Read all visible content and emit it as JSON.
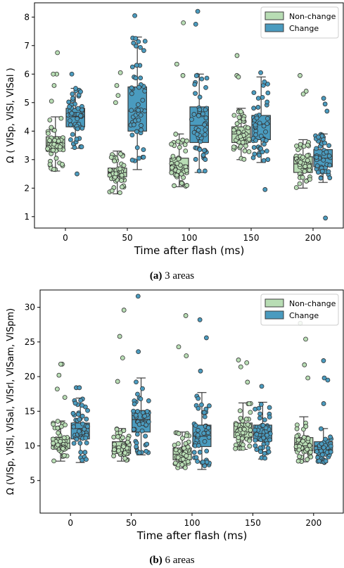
{
  "colors": {
    "nonchange": "#b8ddb4",
    "change": "#4a9bbf",
    "edge": "#3d3d3d"
  },
  "chart_data": [
    {
      "type": "box",
      "xlabel": "Time after flash (ms)",
      "ylabel": "Ω ( VISp, VISl, VISal )",
      "categories": [
        "0",
        "50",
        "100",
        "150",
        "200"
      ],
      "yticks": [
        1,
        2,
        3,
        4,
        5,
        6,
        7,
        8
      ],
      "ylim": [
        0.6,
        8.5
      ],
      "grid": false,
      "legend": {
        "position": "top-right",
        "entries": [
          "Non-change",
          "Change"
        ]
      },
      "series": [
        {
          "name": "Non-change",
          "boxes": [
            {
              "q1": 3.3,
              "median": 3.5,
              "q3": 3.8,
              "whisker_low": 2.6,
              "whisker_high": 4.5
            },
            {
              "q1": 2.4,
              "median": 2.55,
              "q3": 2.7,
              "whisker_low": 1.8,
              "whisker_high": 3.3
            },
            {
              "q1": 2.5,
              "median": 2.8,
              "q3": 3.05,
              "whisker_low": 2.05,
              "whisker_high": 3.9
            },
            {
              "q1": 3.6,
              "median": 3.9,
              "q3": 4.15,
              "whisker_low": 3.0,
              "whisker_high": 4.8
            },
            {
              "q1": 2.55,
              "median": 2.85,
              "q3": 3.1,
              "whisker_low": 2.0,
              "whisker_high": 3.7
            }
          ],
          "outliers": [
            [
              6.75,
              6.0,
              6.0,
              5.6,
              5.05
            ],
            [
              6.05,
              5.6,
              5.25,
              5.0
            ],
            [
              7.8,
              6.35,
              5.95
            ],
            [
              6.65,
              5.95,
              5.9
            ],
            [
              5.95,
              5.4,
              5.3
            ]
          ]
        },
        {
          "name": "Change",
          "boxes": [
            {
              "q1": 4.15,
              "median": 4.5,
              "q3": 4.8,
              "whisker_low": 3.4,
              "whisker_high": 5.5
            },
            {
              "q1": 4.0,
              "median": 4.7,
              "q3": 5.55,
              "whisker_low": 2.65,
              "whisker_high": 7.3
            },
            {
              "q1": 3.6,
              "median": 4.2,
              "q3": 4.85,
              "whisker_low": 2.55,
              "whisker_high": 6.0
            },
            {
              "q1": 3.7,
              "median": 4.25,
              "q3": 4.55,
              "whisker_low": 2.9,
              "whisker_high": 5.9
            },
            {
              "q1": 2.75,
              "median": 3.05,
              "q3": 3.35,
              "whisker_low": 2.2,
              "whisker_high": 3.9
            }
          ],
          "outliers": [
            [
              6.0,
              5.5,
              2.5
            ],
            [
              8.05,
              7.25
            ],
            [
              8.2,
              7.75
            ],
            [
              6.05,
              1.95
            ],
            [
              5.15,
              4.95,
              4.7,
              0.95
            ]
          ]
        }
      ]
    },
    {
      "type": "box",
      "xlabel": "Time after flash (ms)",
      "ylabel": "Ω (VISp, VISl, VISal, VISrl, VISam, VISpm)",
      "categories": [
        "0",
        "50",
        "100",
        "150",
        "200"
      ],
      "yticks": [
        5,
        10,
        15,
        20,
        25,
        30
      ],
      "ylim": [
        0.3,
        32.5
      ],
      "grid": false,
      "legend": {
        "position": "top-right",
        "entries": [
          "Non-change",
          "Change"
        ]
      },
      "series": [
        {
          "name": "Non-change",
          "boxes": [
            {
              "q1": 9.6,
              "median": 10.4,
              "q3": 11.2,
              "whisker_low": 7.8,
              "whisker_high": 13.6
            },
            {
              "q1": 8.9,
              "median": 9.6,
              "q3": 10.6,
              "whisker_low": 7.8,
              "whisker_high": 12.5
            },
            {
              "q1": 8.0,
              "median": 8.8,
              "q3": 9.7,
              "whisker_low": 6.8,
              "whisker_high": 12.0
            },
            {
              "q1": 11.2,
              "median": 12.0,
              "q3": 13.3,
              "whisker_low": 9.5,
              "whisker_high": 16.2
            },
            {
              "q1": 9.3,
              "median": 10.0,
              "q3": 11.2,
              "whisker_low": 7.7,
              "whisker_high": 14.2
            }
          ],
          "outliers": [
            [
              21.8,
              21.8,
              20.2,
              18.2,
              17.0
            ],
            [
              29.6,
              25.8,
              22.7,
              19.3
            ],
            [
              28.8,
              24.3,
              23.0
            ],
            [
              22.4,
              22.0,
              21.4,
              19.2
            ],
            [
              27.7,
              25.4,
              21.7,
              19.8
            ]
          ]
        },
        {
          "name": "Change",
          "boxes": [
            {
              "q1": 11.0,
              "median": 12.5,
              "q3": 13.3,
              "whisker_low": 7.6,
              "whisker_high": 16.9
            },
            {
              "q1": 12.0,
              "median": 13.8,
              "q3": 15.1,
              "whisker_low": 8.7,
              "whisker_high": 19.8
            },
            {
              "q1": 9.9,
              "median": 11.4,
              "q3": 13.0,
              "whisker_low": 6.6,
              "whisker_high": 17.7
            },
            {
              "q1": 10.7,
              "median": 11.8,
              "q3": 13.0,
              "whisker_low": 8.1,
              "whisker_high": 16.3
            },
            {
              "q1": 9.0,
              "median": 10.0,
              "q3": 10.6,
              "whisker_low": 7.6,
              "whisker_high": 12.5
            }
          ],
          "outliers": [
            [
              18.4,
              18.4
            ],
            [
              31.6,
              23.6
            ],
            [
              28.2,
              25.6,
              20.8
            ],
            [
              18.6
            ],
            [
              22.3,
              19.8,
              19.5,
              16.1
            ]
          ]
        }
      ]
    }
  ],
  "captions": [
    {
      "label": "(a)",
      "text": " 3 areas"
    },
    {
      "label": "(b)",
      "text": " 6 areas"
    }
  ]
}
